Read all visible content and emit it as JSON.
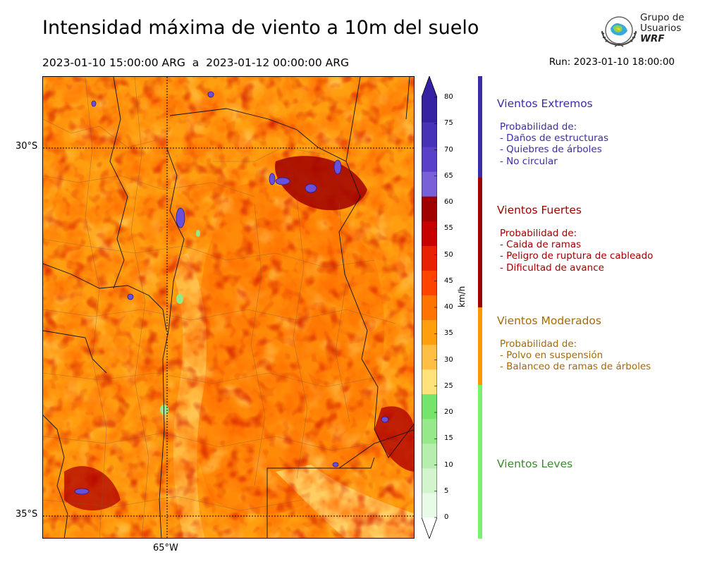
{
  "header": {
    "title": "Intensidad máxima de viento a 10m del suelo",
    "period": "2023-01-10 15:00:00 ARG  a  2023-01-12 00:00:00 ARG",
    "run": "Run: 2023-01-10 18:00:00"
  },
  "logo": {
    "line1": "Grupo de",
    "line2": "Usuarios",
    "line3": "WRF"
  },
  "map": {
    "lat_labels": [
      "30°S",
      "35°S"
    ],
    "lon_labels": [
      "65°W"
    ]
  },
  "colorbar": {
    "unit": "km/h",
    "ticks": [
      "0",
      "5",
      "10",
      "15",
      "20",
      "25",
      "30",
      "35",
      "40",
      "45",
      "50",
      "55",
      "60",
      "65",
      "70",
      "75",
      "80"
    ],
    "colors": [
      "#e8fbe6",
      "#d2f5cd",
      "#b6eeae",
      "#95e98a",
      "#74e46a",
      "#ffe27a",
      "#ffbf45",
      "#ff9f10",
      "#ff7400",
      "#ff4400",
      "#e82200",
      "#c70000",
      "#a00000",
      "#7a60d8",
      "#5a40c8",
      "#4632b6",
      "#3422a2"
    ]
  },
  "legend": [
    {
      "name": "Vientos Extremos",
      "color": "#3a2ea8",
      "bar_color": "#3a2ea8",
      "lines": [
        "Probabilidad de:",
        "- Daños de estructuras",
        "- Quiebres de árboles",
        "- No circular"
      ]
    },
    {
      "name": "Vientos Fuertes",
      "color": "#a00000",
      "bar_color": "#a00000",
      "lines": [
        "Probabilidad de:",
        "- Caida de ramas",
        "- Peligro de ruptura de cableado",
        "- Dificultad de avance"
      ]
    },
    {
      "name": "Vientos Moderados",
      "color": "#a66a00",
      "bar_color": "#ff9800",
      "lines": [
        "Probabilidad de:",
        "- Polvo en suspensión",
        "- Balanceo de ramas de árboles"
      ]
    },
    {
      "name": "Vientos Leves",
      "color": "#3a8a2e",
      "bar_color": "#7af06e",
      "lines": []
    }
  ]
}
